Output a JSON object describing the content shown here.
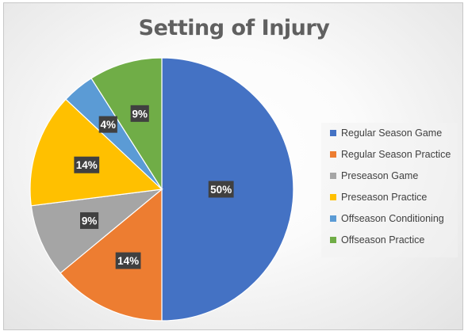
{
  "chart_data": {
    "type": "pie",
    "title": "Setting of Injury",
    "categories": [
      "Regular Season Game",
      "Regular Season Practice",
      "Preseason Game",
      "Preseason Practice",
      "Offseason Conditioning",
      "Offseason Practice"
    ],
    "values": [
      50,
      14,
      9,
      14,
      4,
      9
    ],
    "data_labels": [
      "50%",
      "14%",
      "9%",
      "14%",
      "4%",
      "9%"
    ],
    "colors": [
      "#4472C4",
      "#ED7D31",
      "#A5A5A5",
      "#FFC000",
      "#5B9BD5",
      "#70AD47"
    ],
    "legend_position": "right"
  }
}
